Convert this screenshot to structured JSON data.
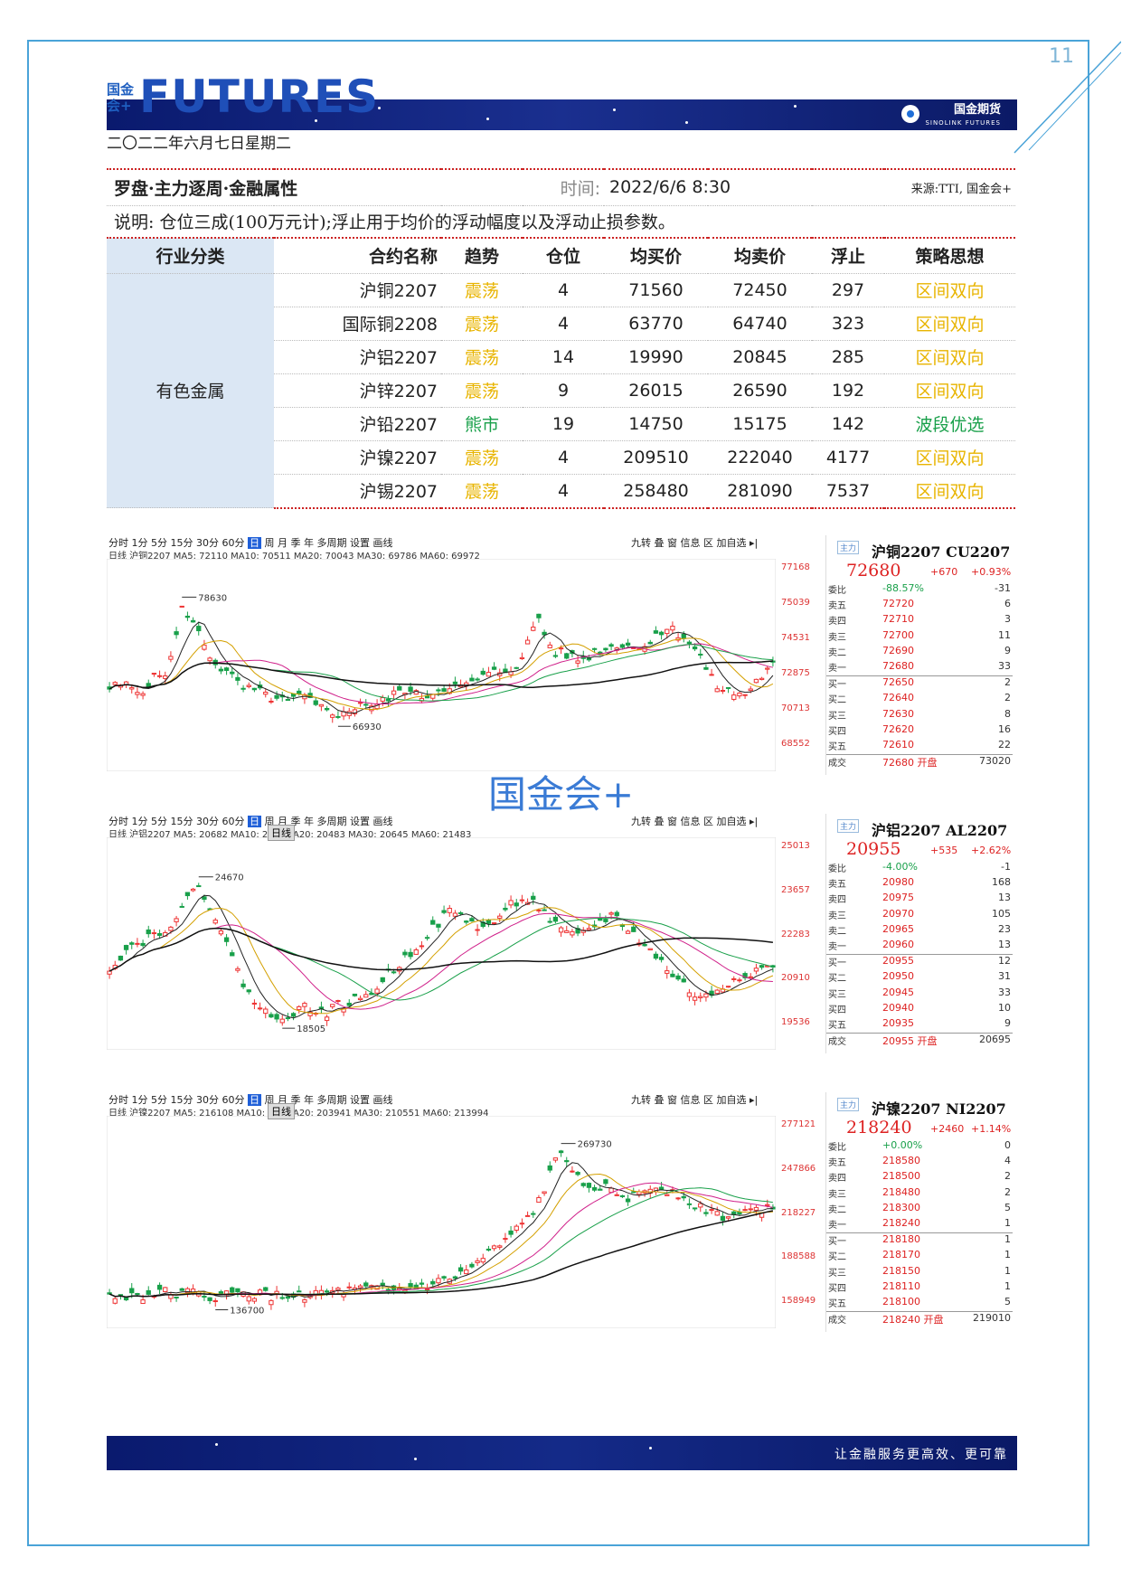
{
  "page_number": "11",
  "logo": {
    "cn": "国金会+",
    "en": "FUTURES"
  },
  "brand": {
    "name": "国金期货",
    "sub": "SINOLINK FUTURES"
  },
  "date": "二〇二二年六月七日星期二",
  "table": {
    "title": "罗盘·主力逐周·金融属性",
    "time_label": "时间:",
    "time_value": "2022/6/6 8:30",
    "source": "来源:TTI, 国金会+",
    "note": "说明: 仓位三成(100万元计);浮止用于均价的浮动幅度以及浮动止损参数。",
    "headers": [
      "行业分类",
      "合约名称",
      "趋势",
      "仓位",
      "均买价",
      "均卖价",
      "浮止",
      "策略思想"
    ],
    "category": "有色金属",
    "rows": [
      {
        "name": "沪铜2207",
        "trend": "震荡",
        "pos": "4",
        "buy": "71560",
        "sell": "72450",
        "stop": "297",
        "strategy": "区间双向",
        "color": "#e8b400"
      },
      {
        "name": "国际铜2208",
        "trend": "震荡",
        "pos": "4",
        "buy": "63770",
        "sell": "64740",
        "stop": "323",
        "strategy": "区间双向",
        "color": "#e8b400"
      },
      {
        "name": "沪铝2207",
        "trend": "震荡",
        "pos": "14",
        "buy": "19990",
        "sell": "20845",
        "stop": "285",
        "strategy": "区间双向",
        "color": "#e8b400"
      },
      {
        "name": "沪锌2207",
        "trend": "震荡",
        "pos": "9",
        "buy": "26015",
        "sell": "26590",
        "stop": "192",
        "strategy": "区间双向",
        "color": "#e8b400"
      },
      {
        "name": "沪铅2207",
        "trend": "熊市",
        "pos": "19",
        "buy": "14750",
        "sell": "15175",
        "stop": "142",
        "strategy": "波段优选",
        "color": "#19a04a"
      },
      {
        "name": "沪镍2207",
        "trend": "震荡",
        "pos": "4",
        "buy": "209510",
        "sell": "222040",
        "stop": "4177",
        "strategy": "区间双向",
        "color": "#e8b400"
      },
      {
        "name": "沪锡2207",
        "trend": "震荡",
        "pos": "4",
        "buy": "258480",
        "sell": "281090",
        "stop": "7537",
        "strategy": "区间双向",
        "color": "#e8b400"
      }
    ]
  },
  "watermark": "国金会+",
  "charts": [
    {
      "toolbar": "分时  1分  5分  15分  30分  60分",
      "toolbar_sel": "日",
      "toolbar_rest": "周 月 季 年 多周期 设置 画线",
      "tools": "九转 叠 窗 信息 区 加自选 ▸|",
      "ma": "日线  沪铜2207 MA5: 72110 MA10: 70511 MA20: 70043 MA30: 69786 MA60: 69972",
      "hi_label": "78630",
      "lo_label": "66930",
      "yaxis": [
        "77168",
        "75039",
        "74531",
        "72875",
        "70713",
        "68552"
      ],
      "quote": {
        "tag": "主力",
        "name": "沪铜2207 CU2207",
        "price": "72680",
        "change": "+670",
        "pct": "+0.93%",
        "rows": [
          [
            "委比",
            "-88.57%",
            "-31"
          ],
          [
            "卖五",
            "72720",
            "6"
          ],
          [
            "卖四",
            "72710",
            "3"
          ],
          [
            "卖三",
            "72700",
            "11"
          ],
          [
            "卖二",
            "72690",
            "9"
          ],
          [
            "卖一",
            "72680",
            "33"
          ],
          [
            "买一",
            "72650",
            "2"
          ],
          [
            "买二",
            "72640",
            "2"
          ],
          [
            "买三",
            "72630",
            "8"
          ],
          [
            "买四",
            "72620",
            "16"
          ],
          [
            "买五",
            "72610",
            "22"
          ],
          [
            "成交",
            "72680 开盘",
            "73020"
          ]
        ]
      }
    },
    {
      "toolbar": "分时  1分  5分  15分  30分  60分",
      "toolbar_sel": "日",
      "toolbar_rest": "周 月 季 年 多周期 设置 画线",
      "tools": "九转 叠 窗 信息 区 加自选 ▸|",
      "ma": "日线  沪铝2207 MA5: 20682 MA10: 20... MA20: 20483 MA30: 20645 MA60: 21483",
      "hi_label": "24670",
      "lo_label": "18505",
      "tooltip": "日线",
      "yaxis": [
        "25013",
        "23657",
        "22283",
        "20910",
        "19536"
      ],
      "quote": {
        "tag": "主力",
        "name": "沪铝2207 AL2207",
        "price": "20955",
        "change": "+535",
        "pct": "+2.62%",
        "rows": [
          [
            "委比",
            "-4.00%",
            "-1"
          ],
          [
            "卖五",
            "20980",
            "168"
          ],
          [
            "卖四",
            "20975",
            "13"
          ],
          [
            "卖三",
            "20970",
            "105"
          ],
          [
            "卖二",
            "20965",
            "23"
          ],
          [
            "卖一",
            "20960",
            "13"
          ],
          [
            "买一",
            "20955",
            "12"
          ],
          [
            "买二",
            "20950",
            "31"
          ],
          [
            "买三",
            "20945",
            "33"
          ],
          [
            "买四",
            "20940",
            "10"
          ],
          [
            "买五",
            "20935",
            "9"
          ],
          [
            "成交",
            "20955 开盘",
            "20695"
          ]
        ]
      }
    },
    {
      "toolbar": "分时  1分  5分  15分  30分  60分",
      "toolbar_sel": "日",
      "toolbar_rest": "周 月 季 年 多周期 设置 画线",
      "tools": "九转 叠 窗 信息 区 加自选 ▸|",
      "ma": "日线  沪镍2207 MA5: 216108 MA10: 2... MA20: 203941 MA30: 210551 MA60: 213994",
      "hi_label": "269730",
      "lo_label": "136700",
      "tooltip": "日线",
      "yaxis": [
        "277121",
        "247866",
        "218227",
        "188588",
        "158949"
      ],
      "quote": {
        "tag": "主力",
        "name": "沪镍2207 NI2207",
        "price": "218240",
        "change": "+2460",
        "pct": "+1.14%",
        "rows": [
          [
            "委比",
            "+0.00%",
            "0"
          ],
          [
            "卖五",
            "218580",
            "4"
          ],
          [
            "卖四",
            "218500",
            "2"
          ],
          [
            "卖三",
            "218480",
            "2"
          ],
          [
            "卖二",
            "218300",
            "5"
          ],
          [
            "卖一",
            "218240",
            "1"
          ],
          [
            "买一",
            "218180",
            "1"
          ],
          [
            "买二",
            "218170",
            "1"
          ],
          [
            "买三",
            "218150",
            "1"
          ],
          [
            "买四",
            "218110",
            "1"
          ],
          [
            "买五",
            "218100",
            "5"
          ],
          [
            "成交",
            "218240 开盘",
            "219010"
          ]
        ]
      }
    }
  ],
  "footer": {
    "slogan": "让金融服务更高效、更可靠"
  }
}
